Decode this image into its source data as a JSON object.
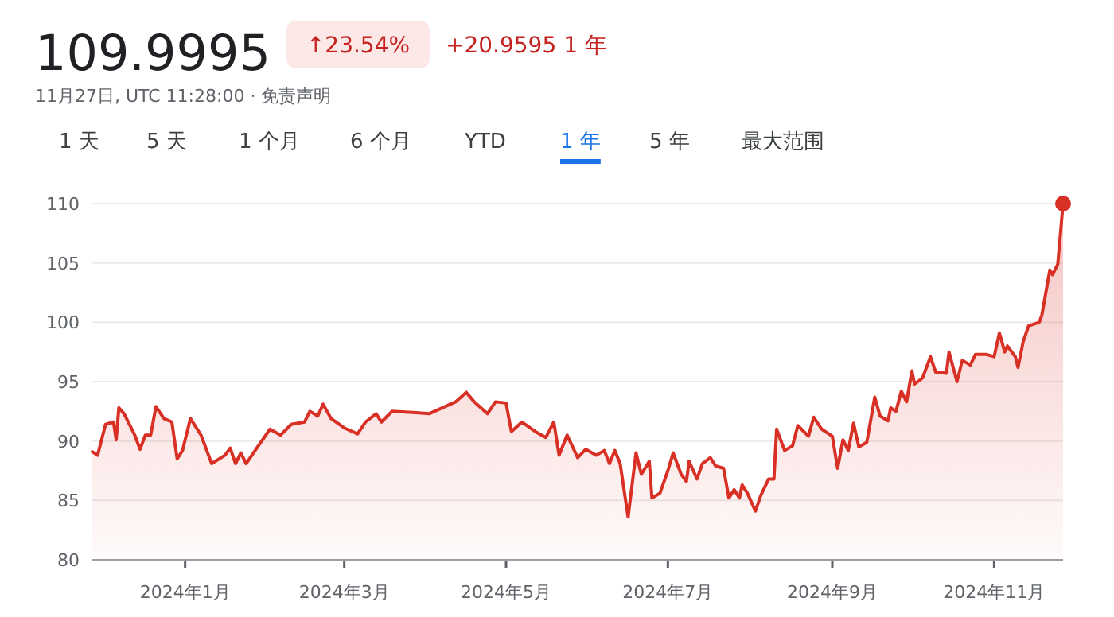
{
  "chart_data": {
    "type": "area",
    "title": "109.9995",
    "subtitle": "11月27日, UTC 11:28:00 · 免责声明",
    "annotations": [
      "↑23.54%",
      "+20.9595 1 年",
      "1 天",
      "5 天",
      "1 个月",
      "6 个月",
      "YTD",
      "1 年",
      "5 年",
      "最大范围"
    ],
    "xlim": [
      "2023-11-27",
      "2024-11-27"
    ],
    "xticks": [
      {
        "value": "2024-01-01",
        "label": "2024年1月"
      },
      {
        "value": "2024-03-01",
        "label": "2024年3月"
      },
      {
        "value": "2024-05-01",
        "label": "2024年5月"
      },
      {
        "value": "2024-07-01",
        "label": "2024年7月"
      },
      {
        "value": "2024-09-01",
        "label": "2024年9月"
      },
      {
        "value": "2024-11-01",
        "label": "2024年11月"
      }
    ],
    "ylim": [
      80,
      110
    ],
    "yticks": [
      80,
      85,
      90,
      95,
      100,
      105,
      110
    ],
    "grid": "y",
    "series": [
      {
        "color": "#d93025",
        "x": [
          "2023-11-27",
          "2023-11-29",
          "2023-12-02",
          "2023-12-05",
          "2023-12-06",
          "2023-12-07",
          "2023-12-09",
          "2023-12-13",
          "2023-12-15",
          "2023-12-17",
          "2023-12-19",
          "2023-12-21",
          "2023-12-24",
          "2023-12-27",
          "2023-12-29",
          "2023-12-31",
          "2024-01-03",
          "2024-01-07",
          "2024-01-11",
          "2024-01-16",
          "2024-01-18",
          "2024-01-20",
          "2024-01-22",
          "2024-01-24",
          "2024-01-28",
          "2024-02-02",
          "2024-02-06",
          "2024-02-10",
          "2024-02-15",
          "2024-02-17",
          "2024-02-20",
          "2024-02-22",
          "2024-02-25",
          "2024-03-01",
          "2024-03-06",
          "2024-03-09",
          "2024-03-13",
          "2024-03-15",
          "2024-03-19",
          "2024-03-27",
          "2024-04-02",
          "2024-04-07",
          "2024-04-12",
          "2024-04-16",
          "2024-04-19",
          "2024-04-24",
          "2024-04-27",
          "2024-05-01",
          "2024-05-03",
          "2024-05-07",
          "2024-05-12",
          "2024-05-16",
          "2024-05-19",
          "2024-05-21",
          "2024-05-24",
          "2024-05-28",
          "2024-05-31",
          "2024-06-04",
          "2024-06-07",
          "2024-06-09",
          "2024-06-11",
          "2024-06-13",
          "2024-06-16",
          "2024-06-19",
          "2024-06-21",
          "2024-06-24",
          "2024-06-25",
          "2024-06-28",
          "2024-07-01",
          "2024-07-03",
          "2024-07-06",
          "2024-07-08",
          "2024-07-09",
          "2024-07-12",
          "2024-07-14",
          "2024-07-17",
          "2024-07-19",
          "2024-07-22",
          "2024-07-24",
          "2024-07-26",
          "2024-07-28",
          "2024-07-29",
          "2024-07-31",
          "2024-08-03",
          "2024-08-05",
          "2024-08-08",
          "2024-08-10",
          "2024-08-11",
          "2024-08-14",
          "2024-08-17",
          "2024-08-19",
          "2024-08-23",
          "2024-08-25",
          "2024-08-28",
          "2024-09-01",
          "2024-09-03",
          "2024-09-05",
          "2024-09-07",
          "2024-09-09",
          "2024-09-11",
          "2024-09-14",
          "2024-09-17",
          "2024-09-19",
          "2024-09-22",
          "2024-09-23",
          "2024-09-25",
          "2024-09-27",
          "2024-09-29",
          "2024-10-01",
          "2024-10-02",
          "2024-10-05",
          "2024-10-08",
          "2024-10-10",
          "2024-10-14",
          "2024-10-15",
          "2024-10-18",
          "2024-10-20",
          "2024-10-23",
          "2024-10-25",
          "2024-10-29",
          "2024-11-01",
          "2024-11-03",
          "2024-11-05",
          "2024-11-06",
          "2024-11-09",
          "2024-11-10",
          "2024-11-12",
          "2024-11-14",
          "2024-11-18",
          "2024-11-19",
          "2024-11-22",
          "2024-11-23",
          "2024-11-25",
          "2024-11-27"
        ],
        "values": [
          89.1,
          88.8,
          91.4,
          91.6,
          90.1,
          92.8,
          92.3,
          90.5,
          89.3,
          90.5,
          90.5,
          92.9,
          91.9,
          91.6,
          88.5,
          89.2,
          91.9,
          90.5,
          88.1,
          88.8,
          89.4,
          88.1,
          89.0,
          88.1,
          89.4,
          91.0,
          90.5,
          91.4,
          91.6,
          92.5,
          92.1,
          93.1,
          91.9,
          91.1,
          90.6,
          91.6,
          92.3,
          91.6,
          92.5,
          92.4,
          92.3,
          92.8,
          93.3,
          94.1,
          93.3,
          92.3,
          93.3,
          93.2,
          90.8,
          91.6,
          90.8,
          90.3,
          91.6,
          88.8,
          90.5,
          88.6,
          89.3,
          88.8,
          89.2,
          88.1,
          89.2,
          88.1,
          83.6,
          89.0,
          87.2,
          88.3,
          85.2,
          85.6,
          87.5,
          89.0,
          87.2,
          86.6,
          88.3,
          86.8,
          88.1,
          88.6,
          87.9,
          87.7,
          85.2,
          85.9,
          85.2,
          86.3,
          85.6,
          84.1,
          85.4,
          86.8,
          86.8,
          91.0,
          89.2,
          89.6,
          91.3,
          90.4,
          92.0,
          91.0,
          90.4,
          87.7,
          90.1,
          89.2,
          91.5,
          89.5,
          89.9,
          93.7,
          92.1,
          91.7,
          92.8,
          92.5,
          94.2,
          93.3,
          95.9,
          94.8,
          95.3,
          97.1,
          95.8,
          95.7,
          97.5,
          95.0,
          96.8,
          96.4,
          97.3,
          97.3,
          97.1,
          99.1,
          97.5,
          98.0,
          97.1,
          96.2,
          98.4,
          99.7,
          100.0,
          100.6,
          104.4,
          104.0,
          104.9,
          109.9995
        ]
      },
      {
        "type": "scatter",
        "color": "#d93025",
        "x": [
          "2024-11-27"
        ],
        "values": [
          109.9995
        ]
      }
    ]
  }
}
